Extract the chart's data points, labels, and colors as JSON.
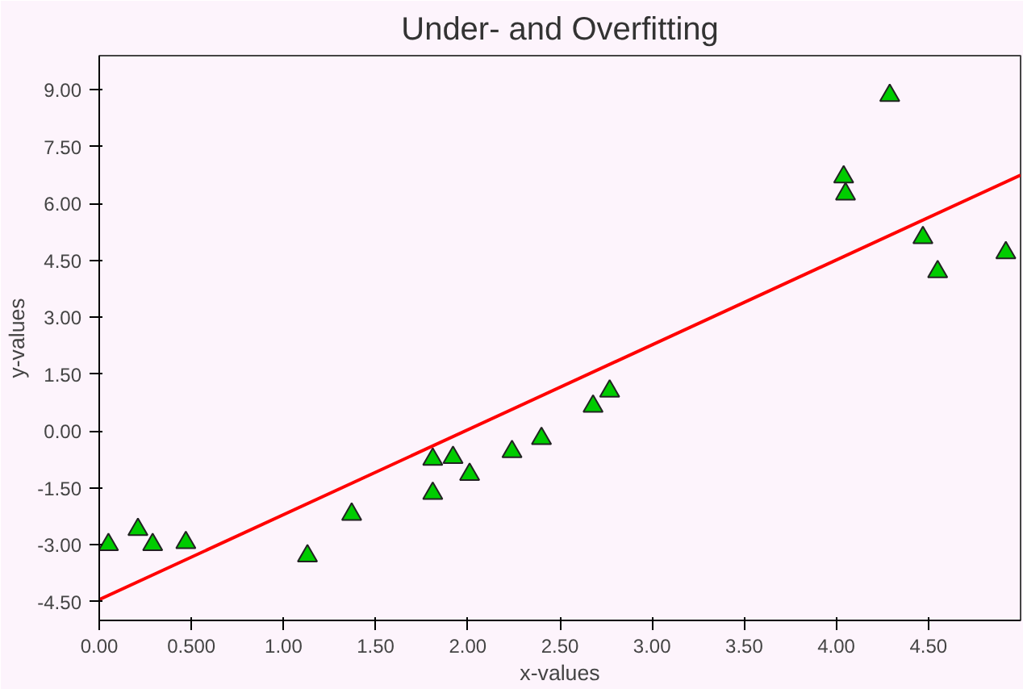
{
  "chart_data": {
    "type": "scatter",
    "title": "Under- and Overfitting",
    "xlabel": "x-values",
    "ylabel": "y-values",
    "xlim": [
      0,
      5
    ],
    "ylim": [
      -5,
      9.9
    ],
    "xticks": [
      {
        "value": 0,
        "label": "0.00"
      },
      {
        "value": 0.5,
        "label": "0.500"
      },
      {
        "value": 1,
        "label": "1.00"
      },
      {
        "value": 1.5,
        "label": "1.50"
      },
      {
        "value": 2,
        "label": "2.00"
      },
      {
        "value": 2.5,
        "label": "2.50"
      },
      {
        "value": 3,
        "label": "3.00"
      },
      {
        "value": 3.5,
        "label": "3.50"
      },
      {
        "value": 4,
        "label": "4.00"
      },
      {
        "value": 4.5,
        "label": "4.50"
      }
    ],
    "yticks": [
      {
        "value": -4.5,
        "label": "-4.50"
      },
      {
        "value": -3,
        "label": "-3.00"
      },
      {
        "value": -1.5,
        "label": "-1.50"
      },
      {
        "value": 0,
        "label": "0.00"
      },
      {
        "value": 1.5,
        "label": "1.50"
      },
      {
        "value": 3,
        "label": "3.00"
      },
      {
        "value": 4.5,
        "label": "4.50"
      },
      {
        "value": 6,
        "label": "6.00"
      },
      {
        "value": 7.5,
        "label": "7.50"
      },
      {
        "value": 9,
        "label": "9.00"
      }
    ],
    "grid": false,
    "marker": "triangle",
    "series": [
      {
        "color": "#00cc00",
        "x": [
          0.05,
          0.21,
          0.29,
          0.47,
          1.13,
          1.37,
          1.81,
          1.81,
          1.92,
          2.01,
          2.24,
          2.4,
          2.68,
          2.77,
          4.04,
          4.05,
          4.29,
          4.47,
          4.55,
          4.92
        ],
        "values": [
          -3.0,
          -2.6,
          -3.0,
          -2.95,
          -3.3,
          -2.2,
          -0.75,
          -1.65,
          -0.7,
          -1.15,
          -0.55,
          -0.2,
          0.65,
          1.05,
          6.7,
          6.25,
          8.85,
          5.1,
          4.2,
          4.7
        ]
      },
      {
        "type": "line",
        "marker": "none",
        "color": "#ff0000",
        "x": [
          0,
          5
        ],
        "values": [
          -4.45,
          6.75
        ]
      }
    ]
  }
}
